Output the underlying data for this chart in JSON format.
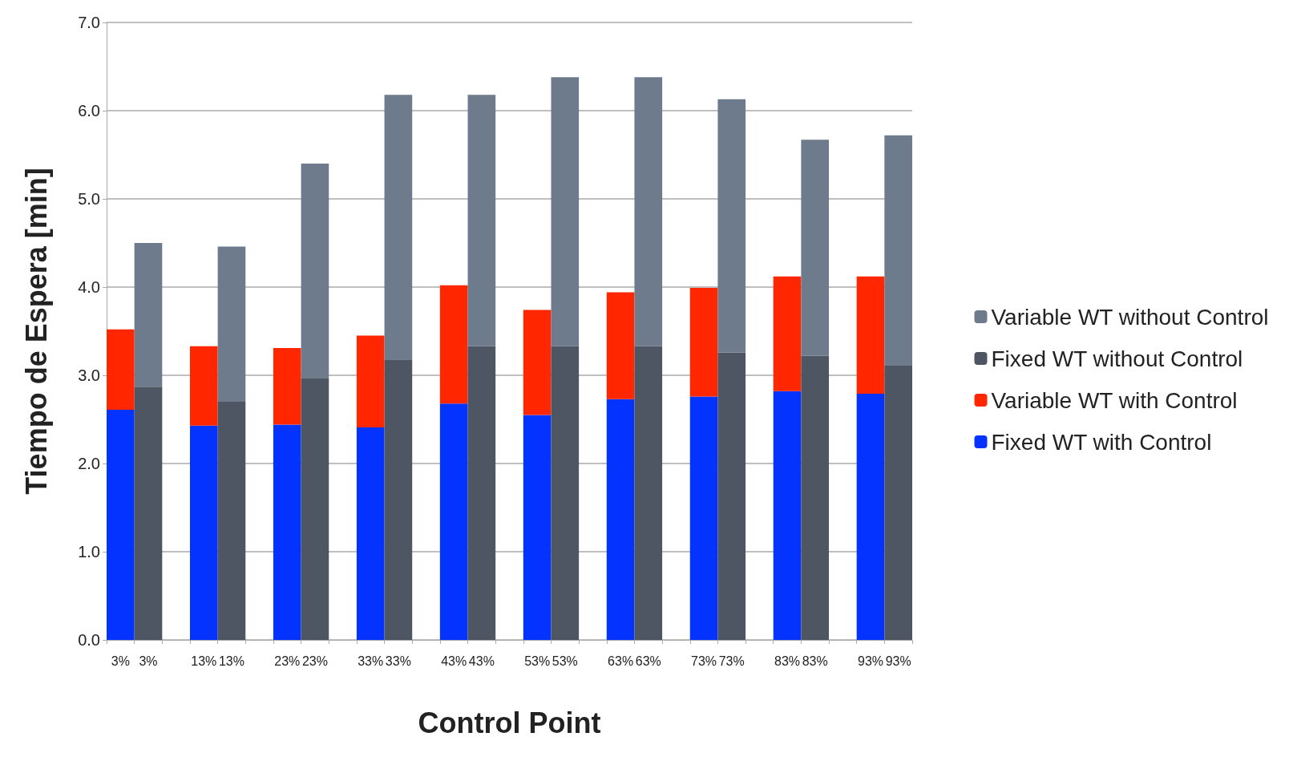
{
  "chart_data": {
    "type": "bar",
    "stacked": true,
    "xlabel": "Control Point",
    "ylabel": "Tiempo de Espera [min]",
    "categories": [
      "3%",
      "3%",
      null,
      "13%",
      "13%",
      null,
      "23%",
      "23%",
      null,
      "33%",
      "33%",
      null,
      "43%",
      "43%",
      null,
      "53%",
      "53%",
      null,
      "63%",
      "63%",
      null,
      "73%",
      "73%",
      null,
      "83%",
      "83%",
      null,
      "93%",
      "93%"
    ],
    "series": [
      {
        "name": "Fixed WT with Control",
        "color": "#0433ff",
        "values": [
          2.61,
          null,
          null,
          2.43,
          null,
          null,
          2.44,
          null,
          null,
          2.41,
          null,
          null,
          2.68,
          null,
          null,
          2.55,
          null,
          null,
          2.73,
          null,
          null,
          2.76,
          null,
          null,
          2.82,
          null,
          null,
          2.79,
          null
        ]
      },
      {
        "name": "Variable WT with Control",
        "color": "#ff2600",
        "values": [
          0.91,
          null,
          null,
          0.9,
          null,
          null,
          0.87,
          null,
          null,
          1.04,
          null,
          null,
          1.34,
          null,
          null,
          1.19,
          null,
          null,
          1.21,
          null,
          null,
          1.23,
          null,
          null,
          1.3,
          null,
          null,
          1.33,
          null
        ]
      },
      {
        "name": "Fixed WT without Control",
        "color": "#4f5663",
        "values": [
          null,
          2.87,
          null,
          null,
          2.7,
          null,
          null,
          2.97,
          null,
          null,
          3.18,
          null,
          null,
          3.33,
          null,
          null,
          3.33,
          null,
          null,
          3.33,
          null,
          null,
          3.26,
          null,
          null,
          3.22,
          null,
          null,
          3.11
        ]
      },
      {
        "name": "Variable WT without Control",
        "color": "#6e7b8c",
        "values": [
          null,
          1.63,
          null,
          null,
          1.76,
          null,
          null,
          2.43,
          null,
          null,
          3.0,
          null,
          null,
          2.85,
          null,
          null,
          3.05,
          null,
          null,
          3.05,
          null,
          null,
          2.87,
          null,
          null,
          2.45,
          null,
          null,
          2.61
        ]
      }
    ],
    "ylim": [
      0,
      7
    ],
    "yticks": [
      {
        "value": 0,
        "label": "0.0"
      },
      {
        "value": 1,
        "label": "1.0"
      },
      {
        "value": 2,
        "label": "2.0"
      },
      {
        "value": 3,
        "label": "3.0"
      },
      {
        "value": 4,
        "label": "4.0"
      },
      {
        "value": 5,
        "label": "5.0"
      },
      {
        "value": 6,
        "label": "6.0"
      },
      {
        "value": 7,
        "label": "7.0"
      }
    ],
    "grid": "y",
    "legend": "right"
  }
}
